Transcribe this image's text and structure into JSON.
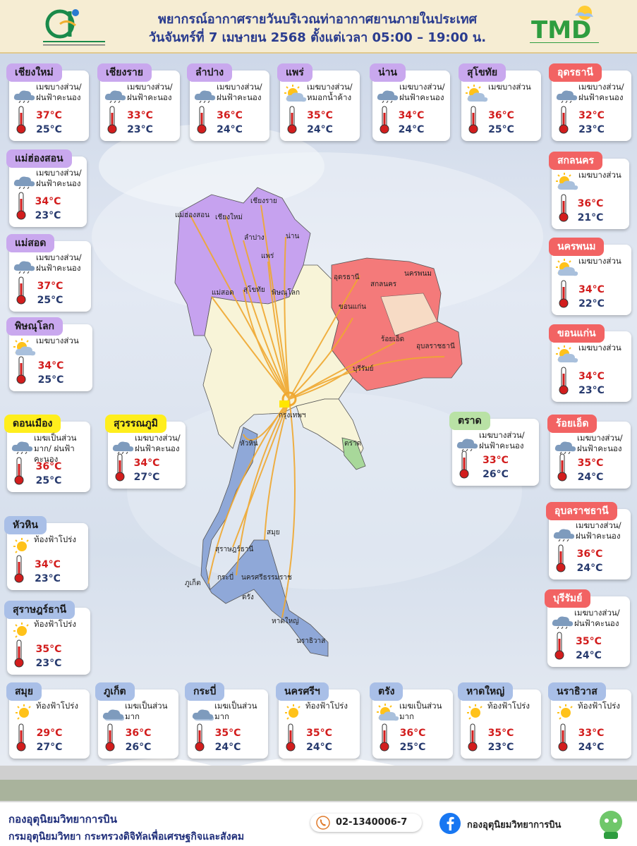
{
  "header": {
    "title_line1": "พยากรณ์อากาศรายวันบริเวณท่าอากาศยานภายในประเทศ",
    "title_line2": "วันจันทร์ที่ 7 เมษายน 2568 ตั้งแต่เวลา 05:00 – 19:00 น.",
    "logo_right_text": "TMD"
  },
  "cities": [
    {
      "name": "เชียงใหม่",
      "desc": "เมฆบางส่วน/ ฝนฟ้าคะนอง",
      "max": "37°C",
      "min": "25°C",
      "icon": "cloud-rain-icon",
      "color": "purple"
    },
    {
      "name": "เชียงราย",
      "desc": "เมฆบางส่วน/ ฝนฟ้าคะนอง",
      "max": "33°C",
      "min": "23°C",
      "icon": "cloud-rain-icon",
      "color": "purple"
    },
    {
      "name": "ลำปาง",
      "desc": "เมฆบางส่วน/ ฝนฟ้าคะนอง",
      "max": "36°C",
      "min": "24°C",
      "icon": "cloud-rain-icon",
      "color": "purple"
    },
    {
      "name": "แพร่",
      "desc": "เมฆบางส่วน/ หมอกน้ำค้าง",
      "max": "35°C",
      "min": "24°C",
      "icon": "sun-cloud-icon",
      "color": "purple"
    },
    {
      "name": "น่าน",
      "desc": "เมฆบางส่วน/ ฝนฟ้าคะนอง",
      "max": "34°C",
      "min": "24°C",
      "icon": "cloud-rain-icon",
      "color": "purple"
    },
    {
      "name": "สุโขทัย",
      "desc": "เมฆบางส่วน",
      "max": "36°C",
      "min": "25°C",
      "icon": "sun-cloud-icon",
      "color": "purple"
    },
    {
      "name": "อุดรธานี",
      "desc": "เมฆบางส่วน/ ฝนฟ้าคะนอง",
      "max": "32°C",
      "min": "23°C",
      "icon": "cloud-rain-icon",
      "color": "red"
    },
    {
      "name": "แม่ฮ่องสอน",
      "desc": "เมฆบางส่วน/ ฝนฟ้าคะนอง",
      "max": "34°C",
      "min": "23°C",
      "icon": "cloud-rain-icon",
      "color": "purple"
    },
    {
      "name": "แม่สอด",
      "desc": "เมฆบางส่วน/ ฝนฟ้าคะนอง",
      "max": "37°C",
      "min": "25°C",
      "icon": "cloud-rain-icon",
      "color": "purple"
    },
    {
      "name": "พิษณุโลก",
      "desc": "เมฆบางส่วน",
      "max": "34°C",
      "min": "25°C",
      "icon": "sun-cloud-icon",
      "color": "purple"
    },
    {
      "name": "สกลนคร",
      "desc": "เมฆบางส่วน",
      "max": "36°C",
      "min": "21°C",
      "icon": "sun-cloud-icon",
      "color": "red"
    },
    {
      "name": "นครพนม",
      "desc": "เมฆบางส่วน",
      "max": "34°C",
      "min": "22°C",
      "icon": "sun-cloud-icon",
      "color": "red"
    },
    {
      "name": "ขอนแก่น",
      "desc": "เมฆบางส่วน",
      "max": "34°C",
      "min": "23°C",
      "icon": "sun-cloud-icon",
      "color": "red"
    },
    {
      "name": "ดอนเมือง",
      "desc": "เมฆเป็นส่วนมาก/ ฝนฟ้าคะนอง",
      "max": "36°C",
      "min": "25°C",
      "icon": "cloud-rain-icon",
      "color": "yellow"
    },
    {
      "name": "สุวรรณภูมิ",
      "desc": "เมฆบางส่วน/ ฝนฟ้าคะนอง",
      "max": "34°C",
      "min": "27°C",
      "icon": "cloud-rain-icon",
      "color": "yellow"
    },
    {
      "name": "ตราด",
      "desc": "เมฆบางส่วน/ ฝนฟ้าคะนอง",
      "max": "33°C",
      "min": "26°C",
      "icon": "cloud-rain-icon",
      "color": "green"
    },
    {
      "name": "ร้อยเอ็ด",
      "desc": "เมฆบางส่วน/ ฝนฟ้าคะนอง",
      "max": "35°C",
      "min": "24°C",
      "icon": "cloud-rain-icon",
      "color": "red"
    },
    {
      "name": "หัวหิน",
      "desc": "ท้องฟ้าโปร่ง",
      "max": "34°C",
      "min": "23°C",
      "icon": "sun-icon",
      "color": "blue"
    },
    {
      "name": "อุบลราชธานี",
      "desc": "เมฆบางส่วน/ ฝนฟ้าคะนอง",
      "max": "36°C",
      "min": "24°C",
      "icon": "cloud-rain-icon",
      "color": "red"
    },
    {
      "name": "สุราษฎร์ธานี",
      "desc": "ท้องฟ้าโปร่ง",
      "max": "35°C",
      "min": "23°C",
      "icon": "sun-icon",
      "color": "blue"
    },
    {
      "name": "บุรีรัมย์",
      "desc": "เมฆบางส่วน/ ฝนฟ้าคะนอง",
      "max": "35°C",
      "min": "24°C",
      "icon": "cloud-rain-icon",
      "color": "red"
    },
    {
      "name": "สมุย",
      "desc": "ท้องฟ้าโปร่ง",
      "max": "29°C",
      "min": "27°C",
      "icon": "sun-icon",
      "color": "blue"
    },
    {
      "name": "ภูเก็ต",
      "desc": "เมฆเป็นส่วนมาก",
      "max": "36°C",
      "min": "26°C",
      "icon": "cloud-icon",
      "color": "blue"
    },
    {
      "name": "กระบี่",
      "desc": "เมฆเป็นส่วนมาก",
      "max": "35°C",
      "min": "24°C",
      "icon": "cloud-icon",
      "color": "blue"
    },
    {
      "name": "นครศรีฯ",
      "desc": "ท้องฟ้าโปร่ง",
      "max": "35°C",
      "min": "24°C",
      "icon": "sun-icon",
      "color": "blue"
    },
    {
      "name": "ตรัง",
      "desc": "เมฆเป็นส่วนมาก",
      "max": "36°C",
      "min": "25°C",
      "icon": "sun-cloud-icon",
      "color": "blue"
    },
    {
      "name": "หาดใหญ่",
      "desc": "ท้องฟ้าโปร่ง",
      "max": "35°C",
      "min": "23°C",
      "icon": "sun-icon",
      "color": "blue"
    },
    {
      "name": "นราธิวาส",
      "desc": "ท้องฟ้าโปร่ง",
      "max": "33°C",
      "min": "24°C",
      "icon": "sun-icon",
      "color": "blue"
    }
  ],
  "map_labels": [
    "เชียงราย",
    "แม่ฮ่องสอน",
    "เชียงใหม่",
    "ลำปาง",
    "น่าน",
    "แพร่",
    "แม่สอด",
    "สุโขทัย",
    "พิษณุโลก",
    "อุดรธานี",
    "สกลนคร",
    "นครพนม",
    "ขอนแก่น",
    "ร้อยเอ็ด",
    "อุบลราชธานี",
    "บุรีรัมย์",
    "กรุงเทพฯ",
    "หัวหิน",
    "ตราด",
    "สมุย",
    "สุราษฎร์ธานี",
    "ภูเก็ต",
    "กระบี่",
    "นครศรีธรรมราช",
    "ตรัง",
    "หาดใหญ่",
    "นราธิวาส"
  ],
  "colors": {
    "north": "#c6a2ef",
    "northeast": "#f47a7a",
    "south": "#8fa8d8",
    "central": "#f8f4d8",
    "east": "#a8d89a",
    "route": "#f0a830"
  },
  "footer": {
    "org_line1": "กองอุตุนิยมวิทยาการบิน",
    "org_line2": "กรมอุตุนิยมวิทยา กระทรวงดิจิทัลเพื่อเศรษฐกิจและสังคม",
    "phone": "02-1340006-7",
    "facebook": "กองอุตุนิยมวิทยาการบิน"
  }
}
